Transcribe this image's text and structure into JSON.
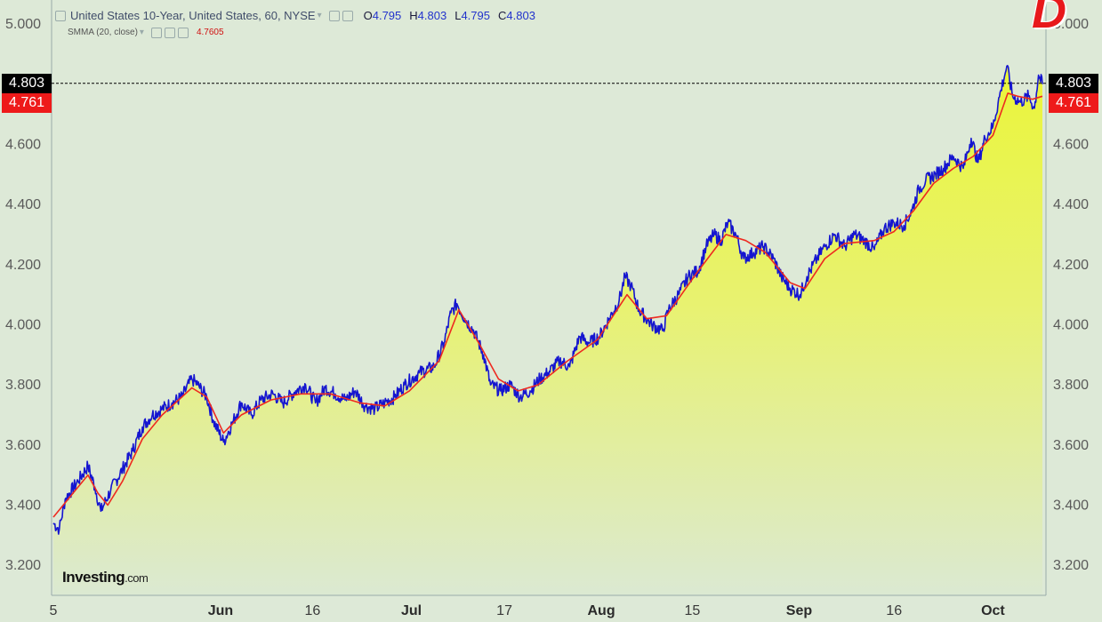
{
  "legend": {
    "symbol": "United States 10-Year, United States, 60, NYSE",
    "open_key": "O",
    "open": "4.795",
    "high_key": "H",
    "high": "4.803",
    "low_key": "L",
    "low": "4.795",
    "close_key": "C",
    "close": "4.803",
    "indicator": "SMMA (20, close)",
    "indicator_value": "4.7605"
  },
  "price_tags": {
    "last": "4.803",
    "smma": "4.761"
  },
  "branding": {
    "name": "Investing",
    "suffix": ".com",
    "corner_mark": "D"
  },
  "colors": {
    "price_line": "#1515d0",
    "smma_line": "#ee2a20",
    "area_fill_top": "#eaf53a",
    "area_fill_bottom": "#d7e8d4",
    "background": "#dde9d7"
  },
  "chart_data": {
    "type": "line",
    "title": "United States 10-Year, United States, 60, NYSE",
    "ylim": [
      3.1,
      5.08
    ],
    "y_ticks": [
      "5.000",
      "4.600",
      "4.400",
      "4.200",
      "4.000",
      "3.800",
      "3.600",
      "3.400",
      "3.200"
    ],
    "x_ticks": [
      {
        "label": "5",
        "t": 0.0,
        "bold": false
      },
      {
        "label": "Jun",
        "t": 0.169,
        "bold": true
      },
      {
        "label": "16",
        "t": 0.262,
        "bold": false
      },
      {
        "label": "Jul",
        "t": 0.362,
        "bold": true
      },
      {
        "label": "17",
        "t": 0.456,
        "bold": false
      },
      {
        "label": "Aug",
        "t": 0.554,
        "bold": true
      },
      {
        "label": "15",
        "t": 0.646,
        "bold": false
      },
      {
        "label": "Sep",
        "t": 0.754,
        "bold": true
      },
      {
        "label": "16",
        "t": 0.85,
        "bold": false
      },
      {
        "label": "Oct",
        "t": 0.95,
        "bold": true
      }
    ],
    "series": [
      {
        "name": "United States 10-Year",
        "key_points": [
          [
            0.0,
            3.34
          ],
          [
            0.006,
            3.32
          ],
          [
            0.012,
            3.42
          ],
          [
            0.025,
            3.48
          ],
          [
            0.035,
            3.53
          ],
          [
            0.042,
            3.46
          ],
          [
            0.048,
            3.38
          ],
          [
            0.058,
            3.45
          ],
          [
            0.07,
            3.52
          ],
          [
            0.08,
            3.58
          ],
          [
            0.09,
            3.66
          ],
          [
            0.1,
            3.7
          ],
          [
            0.11,
            3.72
          ],
          [
            0.12,
            3.74
          ],
          [
            0.13,
            3.76
          ],
          [
            0.14,
            3.82
          ],
          [
            0.146,
            3.8
          ],
          [
            0.155,
            3.76
          ],
          [
            0.162,
            3.68
          ],
          [
            0.172,
            3.61
          ],
          [
            0.182,
            3.68
          ],
          [
            0.19,
            3.74
          ],
          [
            0.2,
            3.7
          ],
          [
            0.21,
            3.75
          ],
          [
            0.222,
            3.77
          ],
          [
            0.232,
            3.74
          ],
          [
            0.245,
            3.78
          ],
          [
            0.255,
            3.8
          ],
          [
            0.265,
            3.74
          ],
          [
            0.275,
            3.79
          ],
          [
            0.285,
            3.77
          ],
          [
            0.295,
            3.75
          ],
          [
            0.305,
            3.78
          ],
          [
            0.315,
            3.73
          ],
          [
            0.325,
            3.72
          ],
          [
            0.335,
            3.74
          ],
          [
            0.345,
            3.76
          ],
          [
            0.355,
            3.8
          ],
          [
            0.37,
            3.84
          ],
          [
            0.385,
            3.86
          ],
          [
            0.395,
            3.94
          ],
          [
            0.402,
            4.04
          ],
          [
            0.408,
            4.07
          ],
          [
            0.416,
            4.02
          ],
          [
            0.425,
            3.98
          ],
          [
            0.435,
            3.9
          ],
          [
            0.442,
            3.8
          ],
          [
            0.452,
            3.78
          ],
          [
            0.462,
            3.8
          ],
          [
            0.472,
            3.76
          ],
          [
            0.482,
            3.78
          ],
          [
            0.492,
            3.82
          ],
          [
            0.5,
            3.84
          ],
          [
            0.512,
            3.88
          ],
          [
            0.522,
            3.86
          ],
          [
            0.532,
            3.96
          ],
          [
            0.542,
            3.94
          ],
          [
            0.552,
            3.96
          ],
          [
            0.562,
            4.02
          ],
          [
            0.572,
            4.08
          ],
          [
            0.578,
            4.16
          ],
          [
            0.584,
            4.13
          ],
          [
            0.592,
            4.05
          ],
          [
            0.605,
            4.0
          ],
          [
            0.616,
            3.98
          ],
          [
            0.622,
            4.05
          ],
          [
            0.632,
            4.1
          ],
          [
            0.642,
            4.16
          ],
          [
            0.652,
            4.18
          ],
          [
            0.66,
            4.26
          ],
          [
            0.668,
            4.3
          ],
          [
            0.675,
            4.28
          ],
          [
            0.682,
            4.34
          ],
          [
            0.69,
            4.3
          ],
          [
            0.698,
            4.22
          ],
          [
            0.708,
            4.24
          ],
          [
            0.718,
            4.26
          ],
          [
            0.728,
            4.22
          ],
          [
            0.736,
            4.16
          ],
          [
            0.745,
            4.12
          ],
          [
            0.755,
            4.1
          ],
          [
            0.762,
            4.16
          ],
          [
            0.772,
            4.22
          ],
          [
            0.78,
            4.26
          ],
          [
            0.79,
            4.3
          ],
          [
            0.8,
            4.26
          ],
          [
            0.81,
            4.3
          ],
          [
            0.82,
            4.28
          ],
          [
            0.83,
            4.25
          ],
          [
            0.84,
            4.32
          ],
          [
            0.85,
            4.34
          ],
          [
            0.86,
            4.33
          ],
          [
            0.868,
            4.38
          ],
          [
            0.875,
            4.45
          ],
          [
            0.882,
            4.48
          ],
          [
            0.892,
            4.5
          ],
          [
            0.9,
            4.52
          ],
          [
            0.91,
            4.56
          ],
          [
            0.92,
            4.52
          ],
          [
            0.928,
            4.62
          ],
          [
            0.935,
            4.54
          ],
          [
            0.942,
            4.62
          ],
          [
            0.95,
            4.66
          ],
          [
            0.958,
            4.78
          ],
          [
            0.964,
            4.86
          ],
          [
            0.97,
            4.76
          ],
          [
            0.978,
            4.74
          ],
          [
            0.986,
            4.76
          ],
          [
            0.992,
            4.72
          ],
          [
            0.996,
            4.83
          ],
          [
            1.0,
            4.8
          ]
        ]
      },
      {
        "name": "SMMA (20, close)",
        "key_points": [
          [
            0.0,
            3.36
          ],
          [
            0.02,
            3.44
          ],
          [
            0.035,
            3.5
          ],
          [
            0.045,
            3.44
          ],
          [
            0.055,
            3.4
          ],
          [
            0.07,
            3.48
          ],
          [
            0.09,
            3.62
          ],
          [
            0.11,
            3.7
          ],
          [
            0.14,
            3.79
          ],
          [
            0.155,
            3.76
          ],
          [
            0.172,
            3.64
          ],
          [
            0.19,
            3.7
          ],
          [
            0.22,
            3.75
          ],
          [
            0.25,
            3.77
          ],
          [
            0.28,
            3.77
          ],
          [
            0.31,
            3.74
          ],
          [
            0.335,
            3.73
          ],
          [
            0.36,
            3.78
          ],
          [
            0.39,
            3.88
          ],
          [
            0.41,
            4.05
          ],
          [
            0.43,
            3.94
          ],
          [
            0.45,
            3.82
          ],
          [
            0.47,
            3.78
          ],
          [
            0.49,
            3.8
          ],
          [
            0.52,
            3.88
          ],
          [
            0.55,
            3.95
          ],
          [
            0.58,
            4.1
          ],
          [
            0.6,
            4.02
          ],
          [
            0.62,
            4.03
          ],
          [
            0.65,
            4.17
          ],
          [
            0.68,
            4.3
          ],
          [
            0.7,
            4.28
          ],
          [
            0.72,
            4.24
          ],
          [
            0.745,
            4.14
          ],
          [
            0.76,
            4.12
          ],
          [
            0.78,
            4.22
          ],
          [
            0.8,
            4.27
          ],
          [
            0.83,
            4.28
          ],
          [
            0.85,
            4.31
          ],
          [
            0.87,
            4.38
          ],
          [
            0.89,
            4.47
          ],
          [
            0.91,
            4.52
          ],
          [
            0.93,
            4.56
          ],
          [
            0.95,
            4.63
          ],
          [
            0.965,
            4.77
          ],
          [
            0.975,
            4.76
          ],
          [
            0.99,
            4.75
          ],
          [
            1.0,
            4.76
          ]
        ]
      }
    ],
    "last_value": 4.803,
    "smma_value": 4.761,
    "grid": false
  }
}
